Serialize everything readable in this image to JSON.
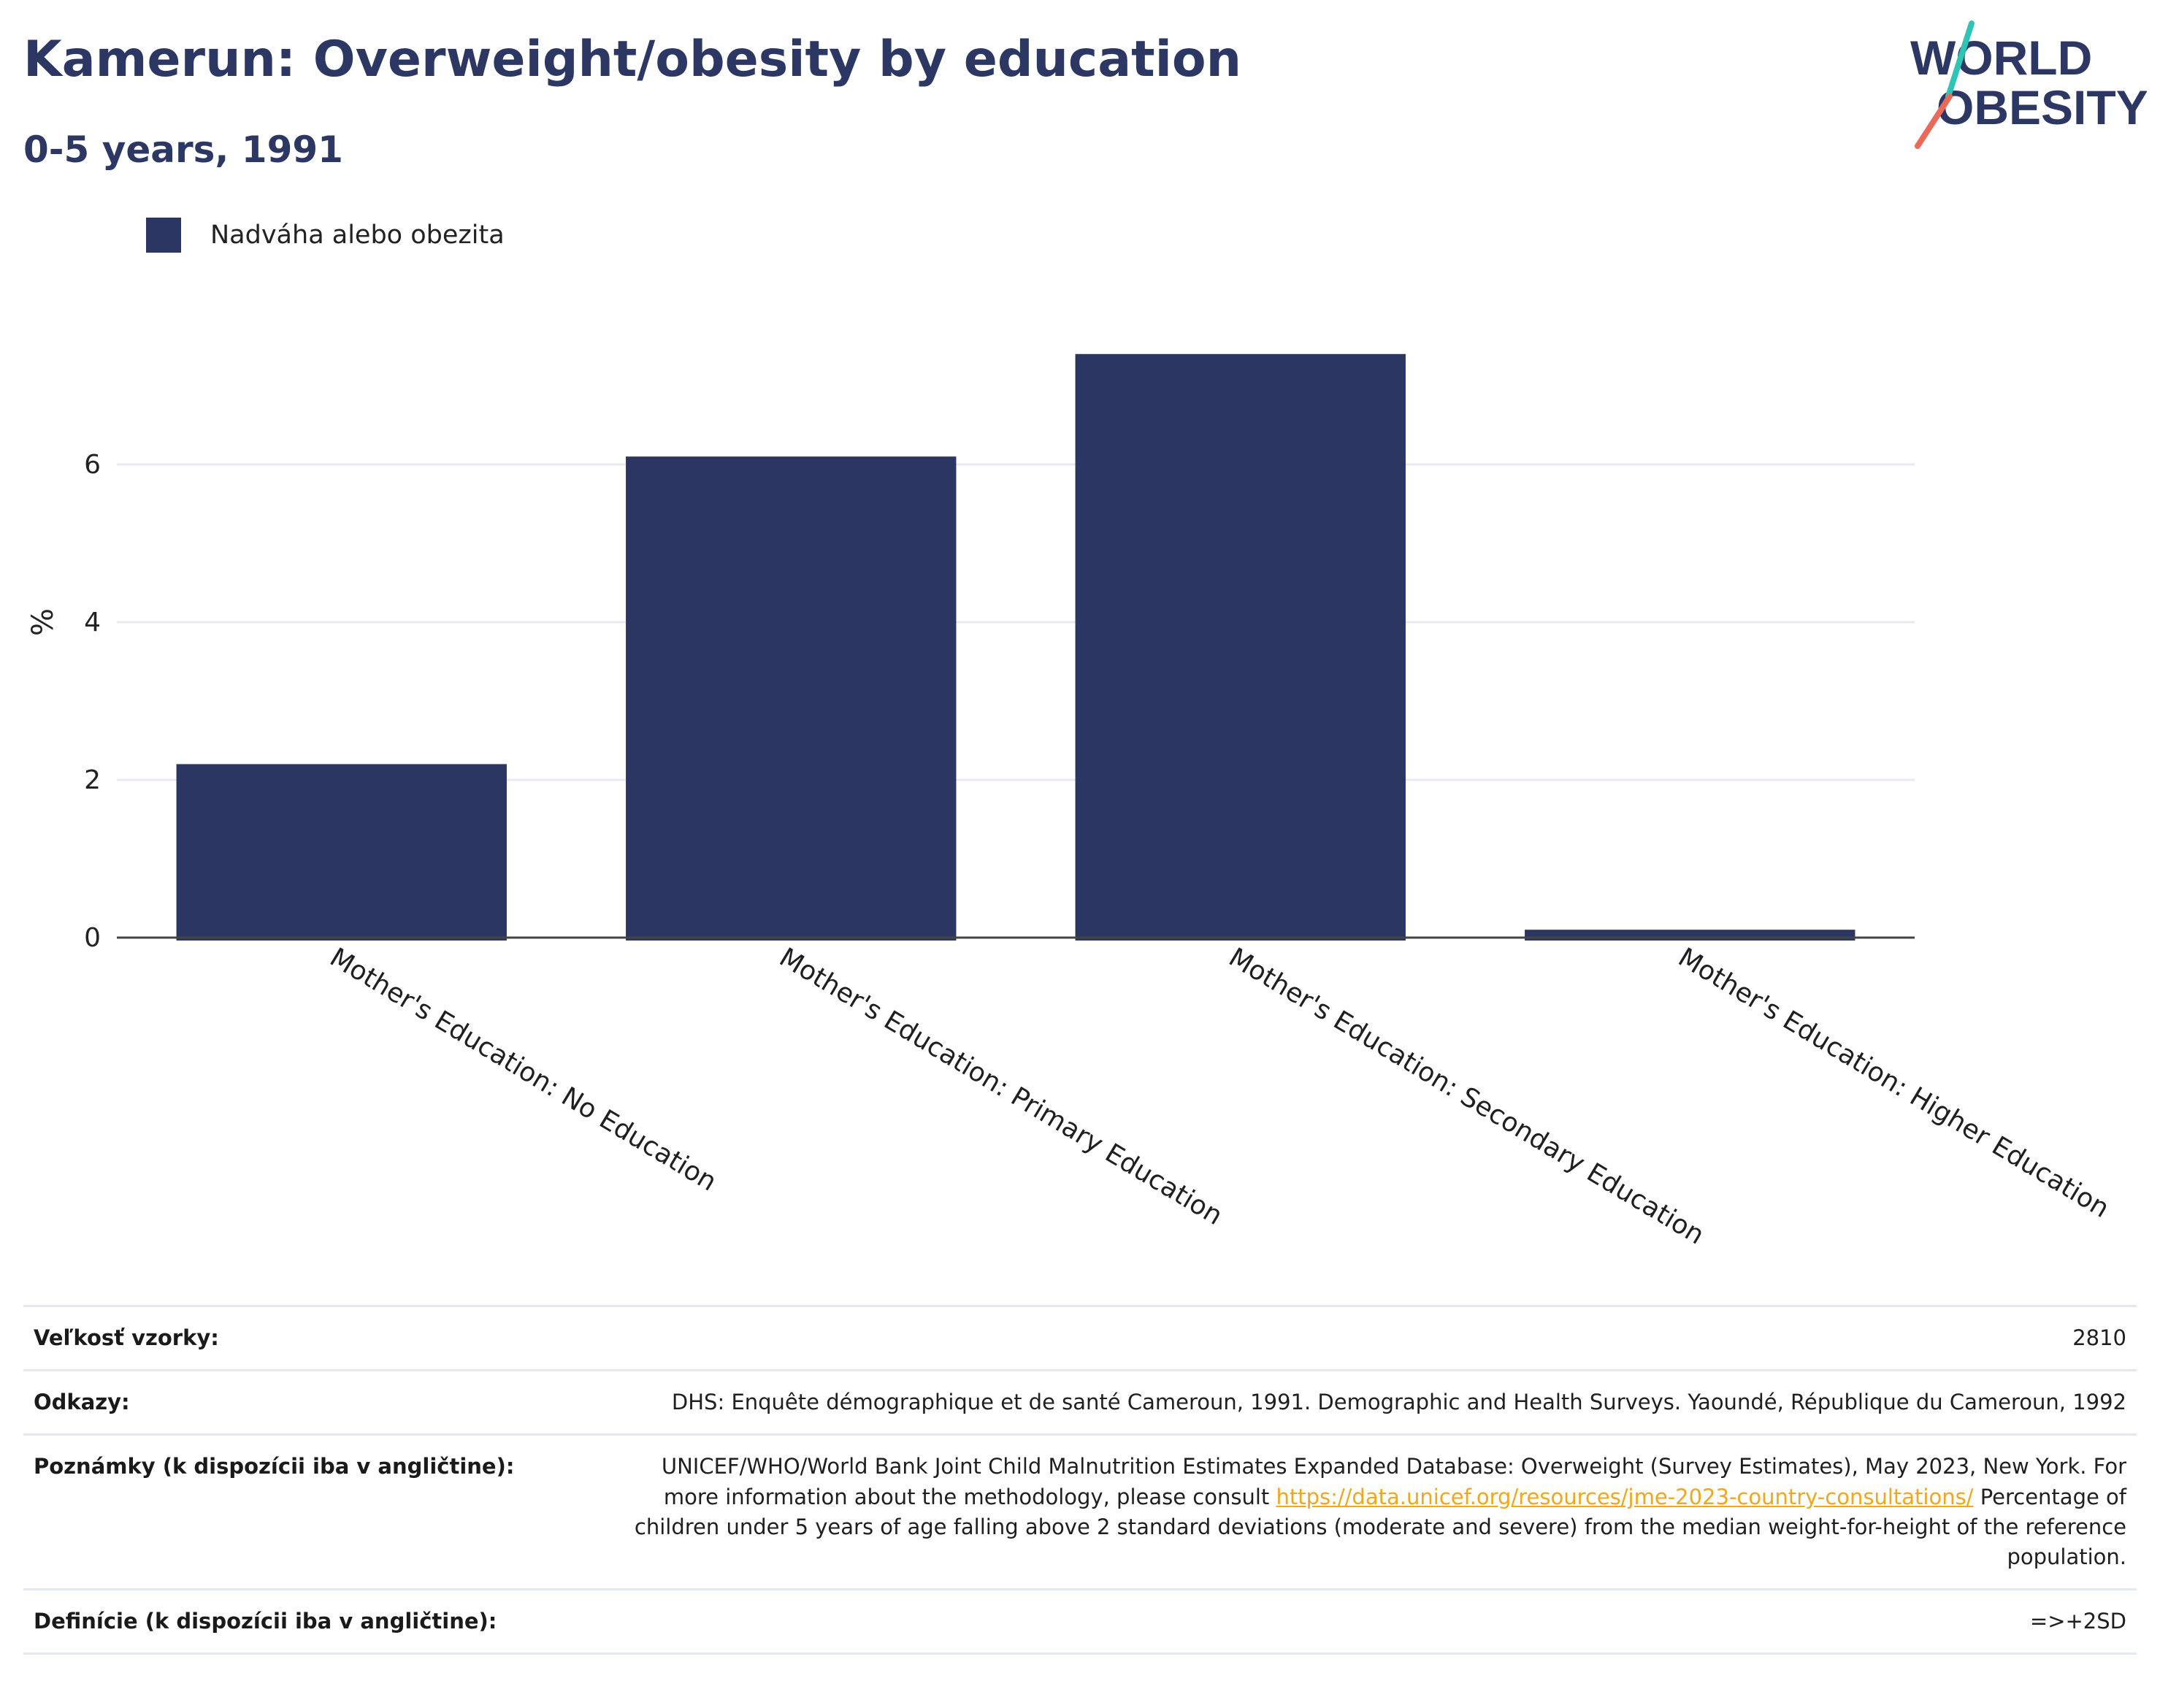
{
  "title": "Kamerun: Overweight/obesity by education",
  "subtitle": "0-5 years, 1991",
  "logo": {
    "line1": "WORLD",
    "line2": "OBESITY"
  },
  "colors": {
    "bar": "#2b3662",
    "title": "#2c3863",
    "grid": "#e7eaf2",
    "link": "#f0a71c",
    "logo_teal": "#2ec4b6",
    "logo_coral": "#ea6a5a"
  },
  "chart_data": {
    "type": "bar",
    "title": "Kamerun: Overweight/obesity by education",
    "subtitle": "0-5 years, 1991",
    "xlabel": "",
    "ylabel": "%",
    "ylim": [
      0,
      8
    ],
    "yticks": [
      0,
      2,
      4,
      6
    ],
    "grid": true,
    "legend_position": "top-left",
    "categories": [
      "Mother's Education: No Education",
      "Mother's Education: Primary Education",
      "Mother's Education: Secondary Education",
      "Mother's Education: Higher Education"
    ],
    "series": [
      {
        "name": "Nadváha alebo obezita",
        "values": [
          2.2,
          6.1,
          7.4,
          0.1
        ]
      }
    ]
  },
  "info": {
    "sample_label": "Veľkosť vzorky:",
    "sample_value": "2810",
    "references_label": "Odkazy:",
    "references_value": "DHS: Enquête démographique et de santé Cameroun, 1991. Demographic and Health Surveys. Yaoundé, République du Cameroun, 1992",
    "notes_label": "Poznámky (k dispozícii iba v angličtine):",
    "notes_value_pre": "UNICEF/WHO/World Bank Joint Child Malnutrition Estimates Expanded Database: Overweight (Survey Estimates), May 2023, New York. For more information about the methodology, please consult",
    "notes_link": "https://data.unicef.org/resources/jme-2023-country-consultations/",
    "notes_value_post": "Percentage of children under 5 years of age falling above 2 standard deviations (moderate and severe) from the median weight-for-height of the reference population.",
    "definitions_label": "Definície (k dispozícii iba v angličtine):",
    "definitions_value": "=>+2SD"
  }
}
